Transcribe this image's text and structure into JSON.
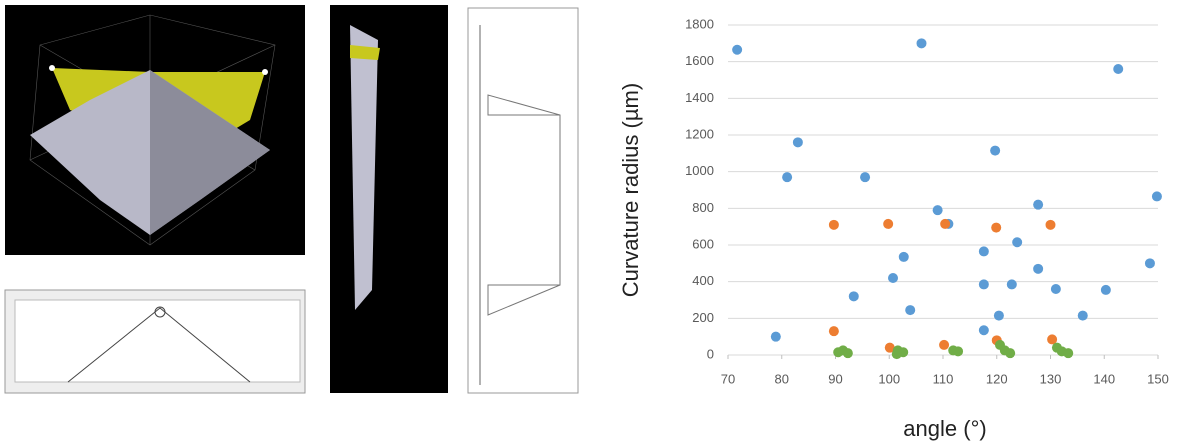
{
  "chart_data": {
    "type": "scatter",
    "x_label": "angle (°)",
    "y_label": "Curvature radius (µm)",
    "xlim": [
      70,
      150
    ],
    "xticks": [
      70,
      80,
      90,
      100,
      110,
      120,
      130,
      140,
      150
    ],
    "ylim": [
      0,
      1800
    ],
    "yticks": [
      0,
      200,
      400,
      600,
      800,
      1000,
      1200,
      1400,
      1600,
      1800
    ],
    "grid": true,
    "series": [
      {
        "color": "#5b9bd5",
        "x": [
          71.7,
          78.9,
          81,
          83,
          95.5,
          93.4,
          106,
          100.7,
          102.7,
          103.9,
          109,
          111,
          117.6,
          117.6,
          117.6,
          119.7,
          120.4,
          122.8,
          123.8,
          127.7,
          127.7,
          131,
          136,
          140.3,
          142.6,
          148.5,
          149.8
        ],
        "values": [
          1665,
          100,
          970,
          1160,
          970,
          320,
          1700,
          420,
          535,
          245,
          790,
          715,
          565,
          385,
          135,
          1115,
          215,
          385,
          615,
          820,
          470,
          360,
          215,
          355,
          1560,
          500,
          865
        ]
      },
      {
        "color": "#ed7d31",
        "x": [
          89.7,
          89.7,
          99.8,
          100.1,
          110.4,
          110.2,
          119.9,
          120,
          130,
          130.3
        ],
        "values": [
          710,
          130,
          715,
          40,
          715,
          55,
          695,
          80,
          710,
          85
        ]
      },
      {
        "color": "#70ad47",
        "x": [
          90.5,
          91.4,
          92.3,
          101.6,
          102.6,
          101.4,
          111.9,
          112.8,
          120.6,
          121.5,
          122.5,
          131.2,
          132.1,
          133.3
        ],
        "values": [
          15,
          25,
          10,
          25,
          15,
          5,
          25,
          20,
          55,
          25,
          10,
          40,
          20,
          10
        ]
      }
    ]
  }
}
